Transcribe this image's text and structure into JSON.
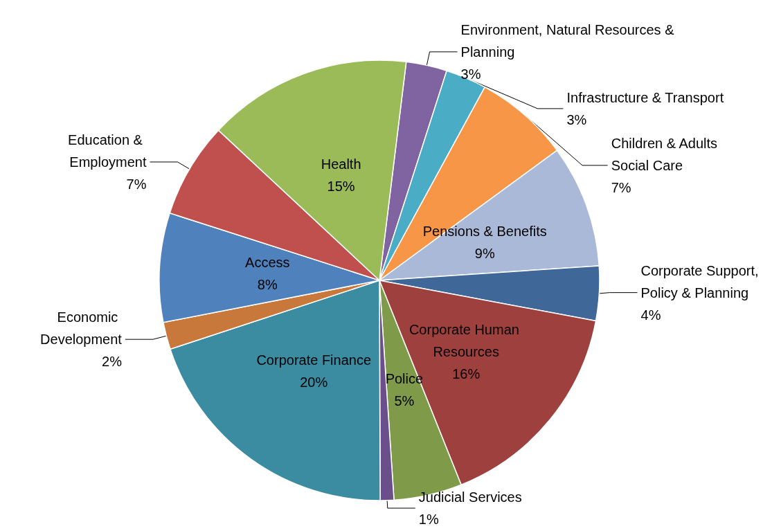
{
  "chart_data": {
    "type": "pie",
    "categories": [
      "Environment, Natural Resources & Planning",
      "Infrastructure & Transport",
      "Children & Adults Social Care",
      "Pensions & Benefits",
      "Corporate Support, Policy & Planning",
      "Corporate Human Resources",
      "Police",
      "Judicial Services",
      "Corporate Finance",
      "Economic Development",
      "Access",
      "Education & Employment",
      "Health"
    ],
    "values": [
      3,
      3,
      7,
      9,
      4,
      16,
      5,
      1,
      20,
      2,
      8,
      7,
      15
    ],
    "colors": [
      "#8064a2",
      "#4bacc6",
      "#f79646",
      "#aab9d8",
      "#3f6797",
      "#9e413e",
      "#7f9a48",
      "#6a4f8a",
      "#3b8ba1",
      "#c8783a",
      "#4f81bd",
      "#c0504d",
      "#9bbb59"
    ],
    "value_labels": [
      "3%",
      "3%",
      "7%",
      "9%",
      "4%",
      "16%",
      "5%",
      "1%",
      "20%",
      "2%",
      "8%",
      "7%",
      "15%"
    ],
    "legend": false
  }
}
